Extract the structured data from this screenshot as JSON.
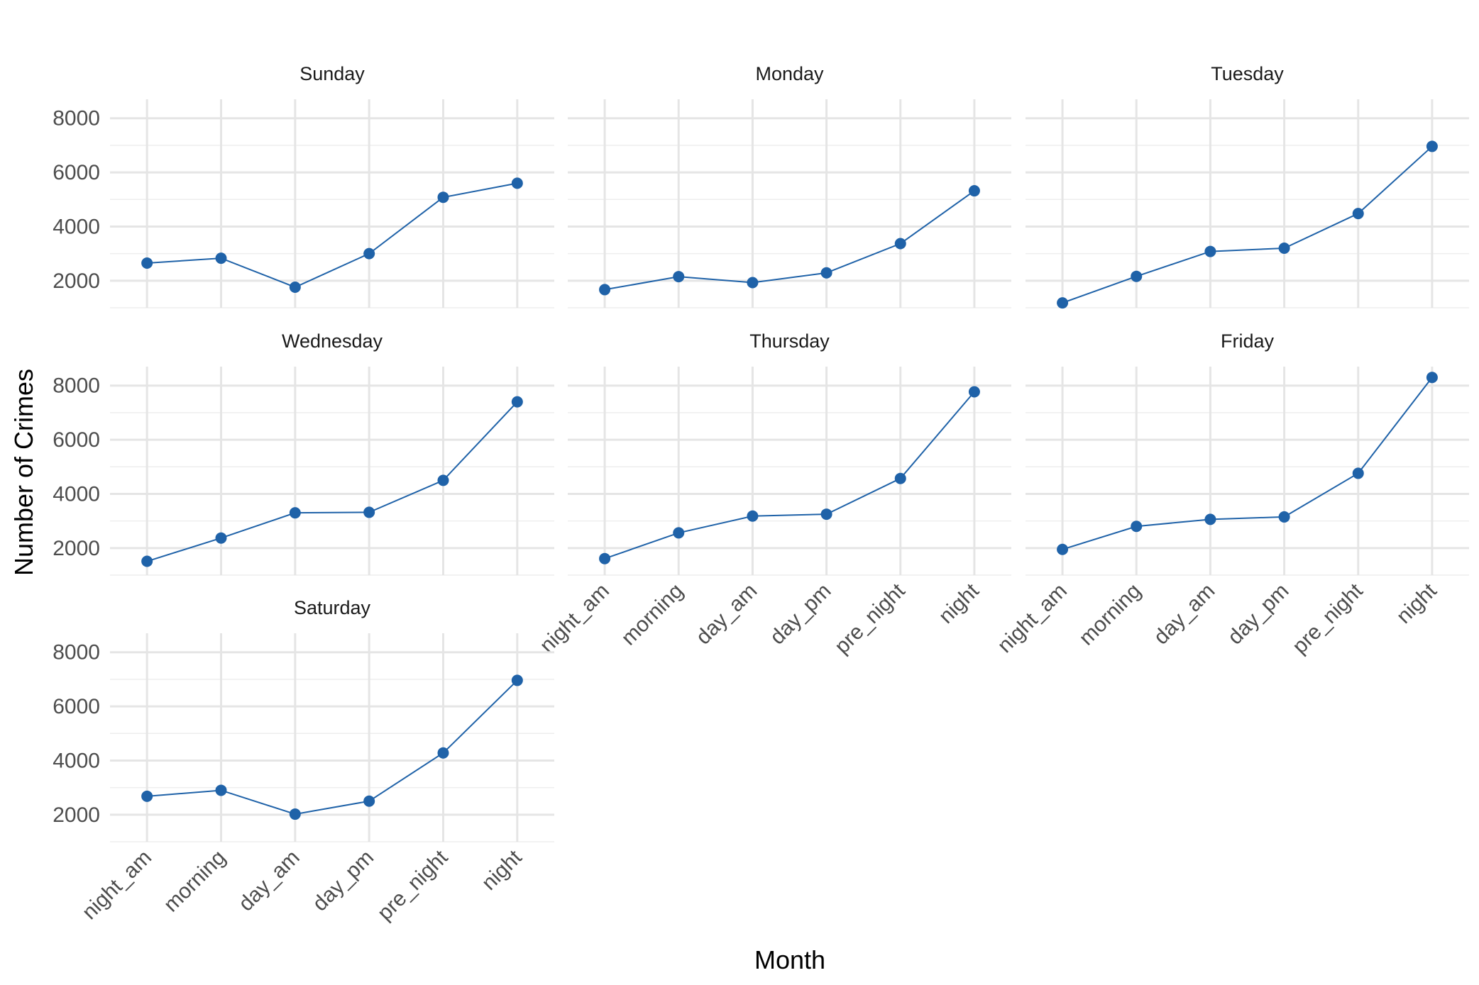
{
  "chart_data": {
    "type": "line",
    "facet_type": "small-multiples",
    "xlabel": "Month",
    "ylabel": "Number of Crimes",
    "categories": [
      "night_am",
      "morning",
      "day_am",
      "day_pm",
      "pre_night",
      "night"
    ],
    "yticks": [
      2000,
      4000,
      6000,
      8000
    ],
    "ylim": [
      1000,
      8700
    ],
    "grid": true,
    "line_color": "#1f62a8",
    "panels": [
      {
        "name": "Sunday",
        "values": [
          2650,
          2830,
          1760,
          3000,
          5080,
          5600
        ]
      },
      {
        "name": "Monday",
        "values": [
          1670,
          2150,
          1930,
          2290,
          3370,
          5320
        ]
      },
      {
        "name": "Tuesday",
        "values": [
          1180,
          2160,
          3080,
          3200,
          4480,
          6960
        ]
      },
      {
        "name": "Wednesday",
        "values": [
          1510,
          2370,
          3300,
          3320,
          4500,
          7400
        ]
      },
      {
        "name": "Thursday",
        "values": [
          1610,
          2560,
          3180,
          3250,
          4570,
          7770
        ]
      },
      {
        "name": "Friday",
        "values": [
          1950,
          2800,
          3060,
          3150,
          4760,
          8300
        ]
      },
      {
        "name": "Saturday",
        "values": [
          2680,
          2900,
          2020,
          2500,
          4280,
          6960
        ]
      }
    ]
  }
}
